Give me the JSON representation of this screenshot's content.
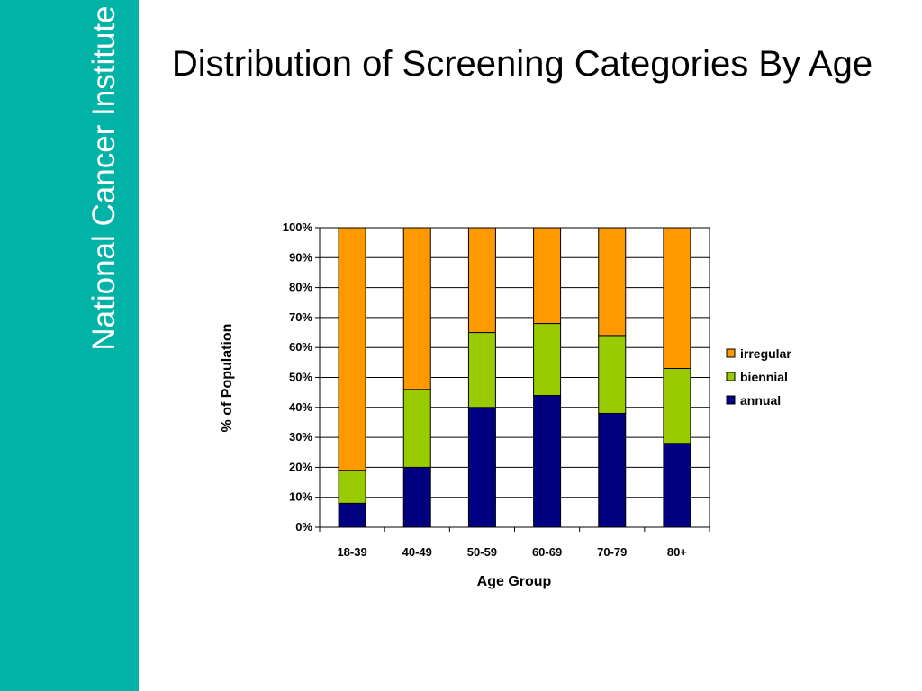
{
  "sidebar": {
    "brand": "National Cancer Institute",
    "color": "#00b3a6"
  },
  "slide": {
    "title": "Distribution of Screening Categories By Age"
  },
  "chart_data": {
    "type": "bar",
    "stacked": true,
    "categories": [
      "18-39",
      "40-49",
      "50-59",
      "60-69",
      "70-79",
      "80+"
    ],
    "series": [
      {
        "name": "annual",
        "color": "#000080",
        "values": [
          8,
          20,
          40,
          44,
          38,
          28
        ]
      },
      {
        "name": "biennial",
        "color": "#99cc00",
        "values": [
          11,
          26,
          25,
          24,
          26,
          25
        ]
      },
      {
        "name": "irregular",
        "color": "#ff9900",
        "values": [
          81,
          54,
          35,
          32,
          36,
          47
        ]
      }
    ],
    "xlabel": "Age Group",
    "ylabel": "% of Population",
    "ylim": [
      0,
      100
    ],
    "yticks": [
      "0%",
      "10%",
      "20%",
      "30%",
      "40%",
      "50%",
      "60%",
      "70%",
      "80%",
      "90%",
      "100%"
    ],
    "grid": true,
    "legend_position": "right",
    "legend_order": [
      "irregular",
      "biennial",
      "annual"
    ]
  }
}
